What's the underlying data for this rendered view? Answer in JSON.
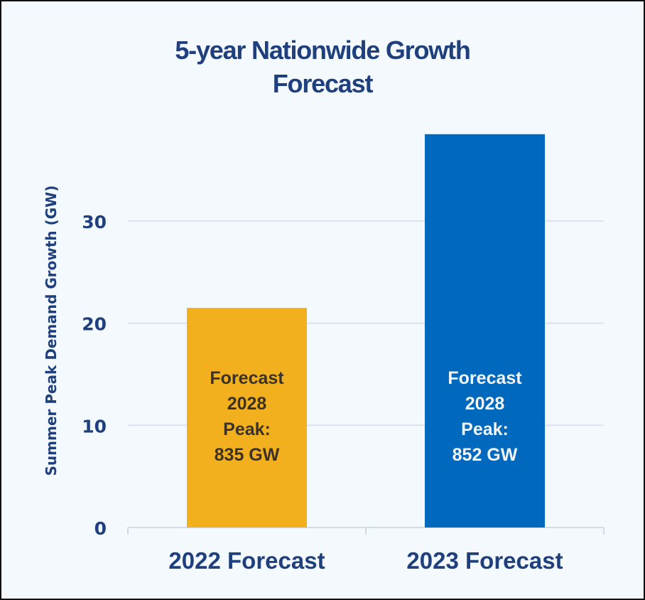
{
  "chart_data": {
    "type": "bar",
    "title": "5-year Nationwide Growth Forecast",
    "title_lines": [
      "5-year Nationwide Growth",
      "Forecast"
    ],
    "xlabel": "",
    "ylabel": "Summer Peak Demand Growth (GW)",
    "categories": [
      "2022 Forecast",
      "2023 Forecast"
    ],
    "values": [
      21.5,
      38.5
    ],
    "colors": [
      "#f2b01e",
      "#0069be"
    ],
    "label_colors": [
      "#3a3228",
      "#f2f4f8"
    ],
    "bar_labels": [
      [
        "Forecast",
        "2028",
        "Peak:",
        "835 GW"
      ],
      [
        "Forecast",
        "2028",
        "Peak:",
        "852 GW"
      ]
    ],
    "yticks": [
      0,
      10,
      20,
      30
    ],
    "ytick_labels": [
      "0",
      "10",
      "20",
      "30"
    ],
    "ylim": [
      0,
      40
    ],
    "grid": true,
    "legend": "none"
  }
}
